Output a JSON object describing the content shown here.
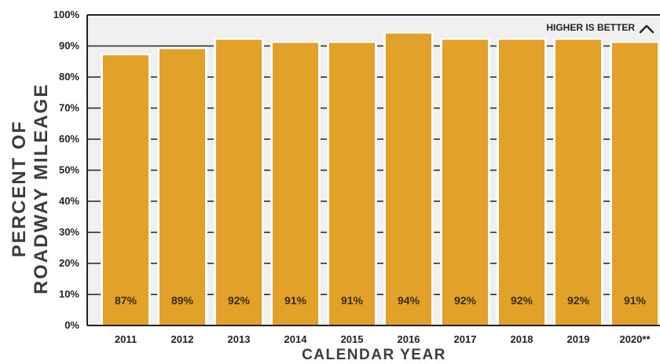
{
  "chart_data": {
    "type": "bar",
    "categories": [
      "2011",
      "2012",
      "2013",
      "2014",
      "2015",
      "2016",
      "2017",
      "2018",
      "2019",
      "2020**"
    ],
    "values": [
      87,
      89,
      92,
      91,
      91,
      94,
      92,
      92,
      92,
      91
    ],
    "value_labels": [
      "87%",
      "89%",
      "92%",
      "91%",
      "91%",
      "94%",
      "92%",
      "92%",
      "92%",
      "91%"
    ],
    "ylabel_lines": [
      "PERCENT OF",
      "ROADWAY MILEAGE"
    ],
    "xlabel": "CALENDAR YEAR",
    "ylim": [
      0,
      100
    ],
    "yticks": [
      "0%",
      "10%",
      "20%",
      "30%",
      "40%",
      "50%",
      "60%",
      "70%",
      "80%",
      "90%",
      "100%"
    ],
    "annotation": "HIGHER IS BETTER",
    "grid": true,
    "colors": {
      "bar": "#E2A22A",
      "plot_bg": "#F0F0F0",
      "axis": "#222222"
    }
  }
}
